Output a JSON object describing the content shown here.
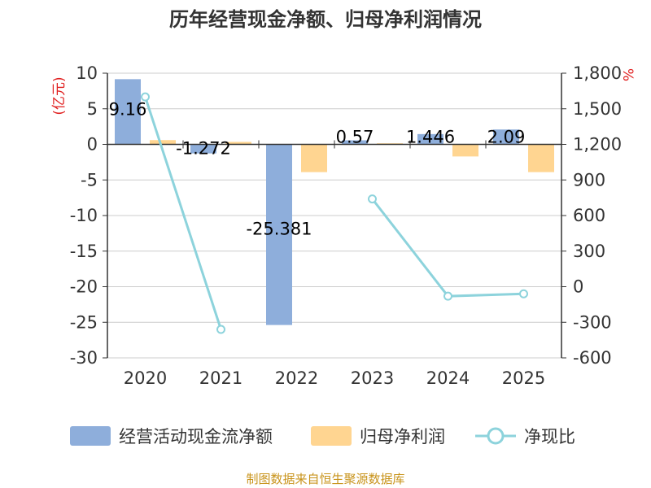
{
  "colors": {
    "cash_flow": "#8eaedb",
    "profit": "#ffd591",
    "ratio": "#8dd3dc",
    "unit": "#e02020",
    "footer": "#c8931a",
    "grid": "#cccccc",
    "axis": "#333333"
  },
  "footer": "制图数据来自恒生聚源数据库",
  "chart_data": {
    "type": "bar",
    "title": "历年经营现金净额、归母净利润情况",
    "categories": [
      "2020",
      "2021",
      "2022",
      "2023",
      "2024",
      "2025"
    ],
    "left_axis": {
      "unit": "(亿元)",
      "ylim": [
        -30,
        10
      ],
      "ticks": [
        10,
        5,
        0,
        -5,
        -10,
        -15,
        -20,
        -25,
        -30
      ],
      "tick_labels": [
        "10",
        "5",
        "0",
        "-5",
        "-10",
        "-15",
        "-20",
        "-25",
        "-30"
      ]
    },
    "right_axis": {
      "unit": "%",
      "ylim": [
        -600,
        1800
      ],
      "ticks": [
        1800,
        1500,
        1200,
        900,
        600,
        300,
        0,
        -300,
        -600
      ],
      "tick_labels": [
        "1,800",
        "1,500",
        "1,200",
        "900",
        "600",
        "300",
        "0",
        "-300",
        "-600"
      ]
    },
    "series": [
      {
        "name": "经营活动现金流净额",
        "type": "bar",
        "axis": "left",
        "values": [
          9.16,
          -1.272,
          -25.381,
          0.57,
          1.446,
          2.09
        ],
        "labels": [
          "9.16",
          "-1.272",
          "-25.381",
          "0.57",
          "1.446",
          "2.09"
        ]
      },
      {
        "name": "归母净利润",
        "type": "bar",
        "axis": "left",
        "values": [
          0.6,
          0.35,
          -3.9,
          0.15,
          -1.7,
          -3.9
        ]
      },
      {
        "name": "净现比",
        "type": "line",
        "axis": "right",
        "segments": [
          [
            [
              0,
              1600
            ],
            [
              1,
              -360
            ]
          ],
          [
            [
              3,
              740
            ],
            [
              4,
              -80
            ],
            [
              5,
              -60
            ]
          ]
        ]
      }
    ],
    "grid": true,
    "legend_position": "bottom"
  }
}
